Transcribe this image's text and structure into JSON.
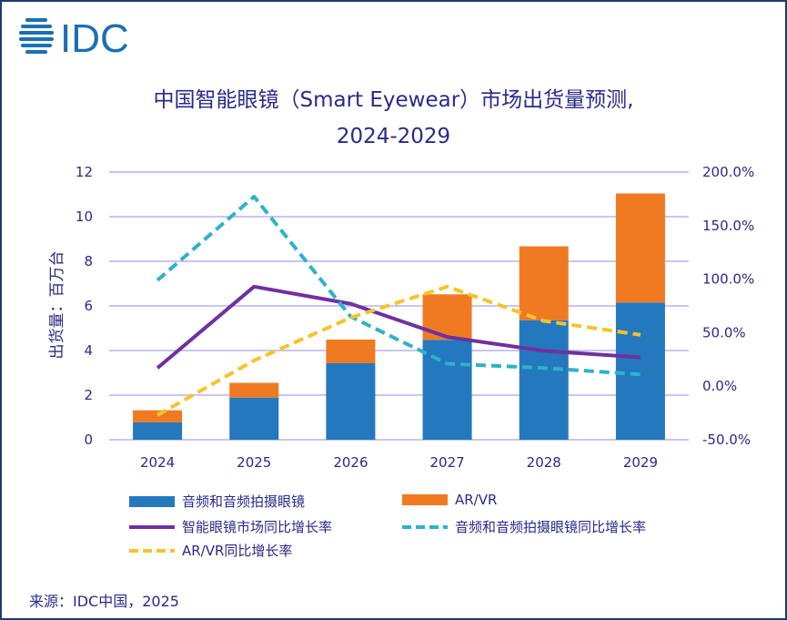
{
  "logo": {
    "text": "IDC"
  },
  "title_line1": "中国智能眼镜（Smart Eyewear）市场出货量预测,",
  "title_line2": "2024-2029",
  "source": "来源：IDC中国，2025",
  "colors": {
    "audio": "#2478be",
    "arvr": "#f07a22",
    "market_growth": "#7030a0",
    "audio_growth": "#2eb2c8",
    "arvr_growth": "#f5c32c",
    "grid": "#b8b0f0",
    "text": "#2a2a8a"
  },
  "chart_data": {
    "type": "bar+line",
    "categories": [
      "2024",
      "2025",
      "2026",
      "2027",
      "2028",
      "2029"
    ],
    "ylabel": "出货量：百万台",
    "ylim": [
      0,
      12
    ],
    "yticks": [
      "0",
      "2",
      "4",
      "6",
      "8",
      "10",
      "12"
    ],
    "y2lim": [
      -50,
      200
    ],
    "y2ticks": [
      "-50.0%",
      "0.0%",
      "50.0%",
      "100.0%",
      "150.0%",
      "200.0%"
    ],
    "grid": true,
    "legend_position": "bottom",
    "bars": [
      {
        "name": "音频和音频拍摄眼镜",
        "values": [
          0.78,
          1.89,
          3.43,
          4.48,
          5.36,
          6.15
        ]
      },
      {
        "name": "AR/VR",
        "values": [
          0.54,
          0.66,
          1.06,
          2.04,
          3.31,
          4.89
        ]
      }
    ],
    "lines": [
      {
        "name": "智能眼镜市场同比增长率",
        "values": [
          17,
          93,
          77,
          46,
          33,
          27
        ],
        "style": "solid"
      },
      {
        "name": "音频和音频拍摄眼镜同比增长率",
        "values": [
          99,
          177,
          65,
          21,
          17,
          11
        ],
        "style": "dashed"
      },
      {
        "name": "AR/VR同比增长率",
        "values": [
          -27,
          24,
          64,
          93,
          61,
          48
        ],
        "style": "dashed"
      }
    ]
  }
}
